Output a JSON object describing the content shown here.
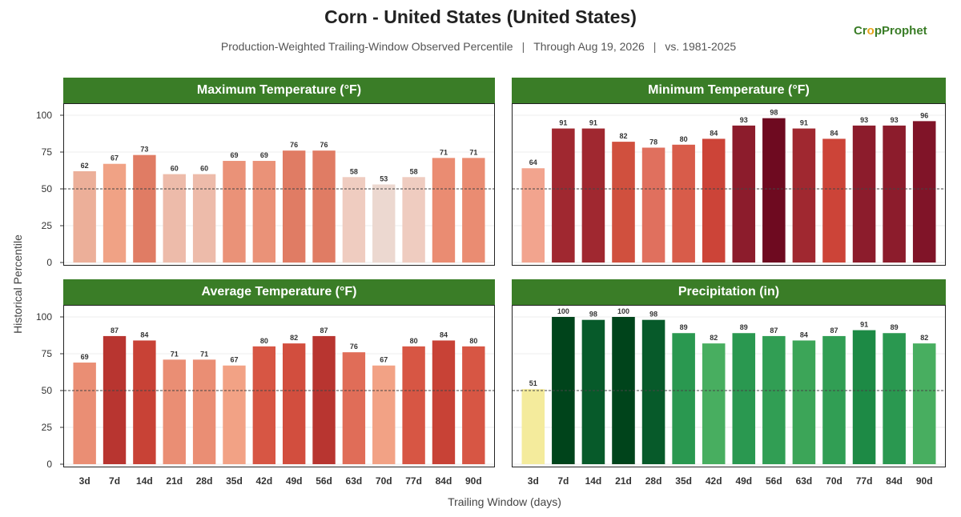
{
  "header": {
    "title": "Corn - United States (United States)",
    "subtitle_parts": [
      "Production-Weighted Trailing-Window Observed Percentile",
      "Through Aug 19, 2026",
      "vs. 1981-2025"
    ],
    "separator": "|",
    "logo_prefix": "Cr",
    "logo_o": "o",
    "logo_suffix": "pProphet"
  },
  "axes": {
    "ylabel": "Historical Percentile",
    "xlabel": "Trailing Window (days)"
  },
  "colors": {
    "header_green": "#3a7d27",
    "reference_line": "#444444"
  },
  "chart_data": [
    {
      "id": "max_temp",
      "type": "bar",
      "title": "Maximum Temperature (°F)",
      "categories": [
        "3d",
        "7d",
        "14d",
        "21d",
        "28d",
        "35d",
        "42d",
        "49d",
        "56d",
        "63d",
        "70d",
        "77d",
        "84d",
        "90d"
      ],
      "values": [
        62,
        67,
        73,
        60,
        60,
        69,
        69,
        76,
        76,
        58,
        53,
        58,
        71,
        71
      ],
      "colors": [
        "#ecaf99",
        "#f0a285",
        "#e07c64",
        "#edbbaa",
        "#edbbaa",
        "#ea9278",
        "#ea9278",
        "#e07c64",
        "#e07c64",
        "#efccc0",
        "#ecd8d0",
        "#efccc0",
        "#ea8c72",
        "#ea8c72"
      ],
      "ylim": [
        0,
        110
      ],
      "yticks": [
        0,
        25,
        50,
        75,
        100
      ],
      "reference": 50,
      "show_xticks": false,
      "show_yticks": true
    },
    {
      "id": "min_temp",
      "type": "bar",
      "title": "Minimum Temperature (°F)",
      "categories": [
        "3d",
        "7d",
        "14d",
        "21d",
        "28d",
        "35d",
        "42d",
        "49d",
        "56d",
        "63d",
        "70d",
        "77d",
        "84d",
        "90d"
      ],
      "values": [
        64,
        91,
        91,
        82,
        78,
        80,
        84,
        93,
        98,
        91,
        84,
        93,
        93,
        96
      ],
      "colors": [
        "#f2a48e",
        "#a02830",
        "#a02830",
        "#d0503e",
        "#e0705e",
        "#d85c4a",
        "#cc4438",
        "#8c1c2c",
        "#6e0a20",
        "#a02830",
        "#cc4438",
        "#8c1c2c",
        "#8c1c2c",
        "#801428"
      ],
      "ylim": [
        0,
        110
      ],
      "yticks": [
        0,
        25,
        50,
        75,
        100
      ],
      "reference": 50,
      "show_xticks": false,
      "show_yticks": false
    },
    {
      "id": "avg_temp",
      "type": "bar",
      "title": "Average Temperature (°F)",
      "categories": [
        "3d",
        "7d",
        "14d",
        "21d",
        "28d",
        "35d",
        "42d",
        "49d",
        "56d",
        "63d",
        "70d",
        "77d",
        "84d",
        "90d"
      ],
      "values": [
        69,
        87,
        84,
        71,
        71,
        67,
        80,
        82,
        87,
        76,
        67,
        80,
        84,
        80
      ],
      "colors": [
        "#ea8e74",
        "#b83530",
        "#c84236",
        "#ea8e74",
        "#ea8e74",
        "#f2a285",
        "#d75644",
        "#d24e3e",
        "#b83530",
        "#e06d58",
        "#f2a285",
        "#d75644",
        "#c84236",
        "#d75644"
      ],
      "ylim": [
        0,
        110
      ],
      "yticks": [
        0,
        25,
        50,
        75,
        100
      ],
      "reference": 50,
      "show_xticks": true,
      "show_yticks": true
    },
    {
      "id": "precip",
      "type": "bar",
      "title": "Precipitation (in)",
      "categories": [
        "3d",
        "7d",
        "14d",
        "21d",
        "28d",
        "35d",
        "42d",
        "49d",
        "56d",
        "63d",
        "70d",
        "77d",
        "84d",
        "90d"
      ],
      "values": [
        51,
        100,
        98,
        100,
        98,
        89,
        82,
        89,
        87,
        84,
        87,
        91,
        89,
        82
      ],
      "colors": [
        "#f4eb9c",
        "#00441b",
        "#075a2a",
        "#00441b",
        "#075a2a",
        "#2a9850",
        "#48ae60",
        "#2a9850",
        "#319e54",
        "#3ca558",
        "#319e54",
        "#1d8a45",
        "#2a9850",
        "#48ae60"
      ],
      "ylim": [
        0,
        110
      ],
      "yticks": [
        0,
        25,
        50,
        75,
        100
      ],
      "reference": 50,
      "show_xticks": true,
      "show_yticks": false
    }
  ]
}
